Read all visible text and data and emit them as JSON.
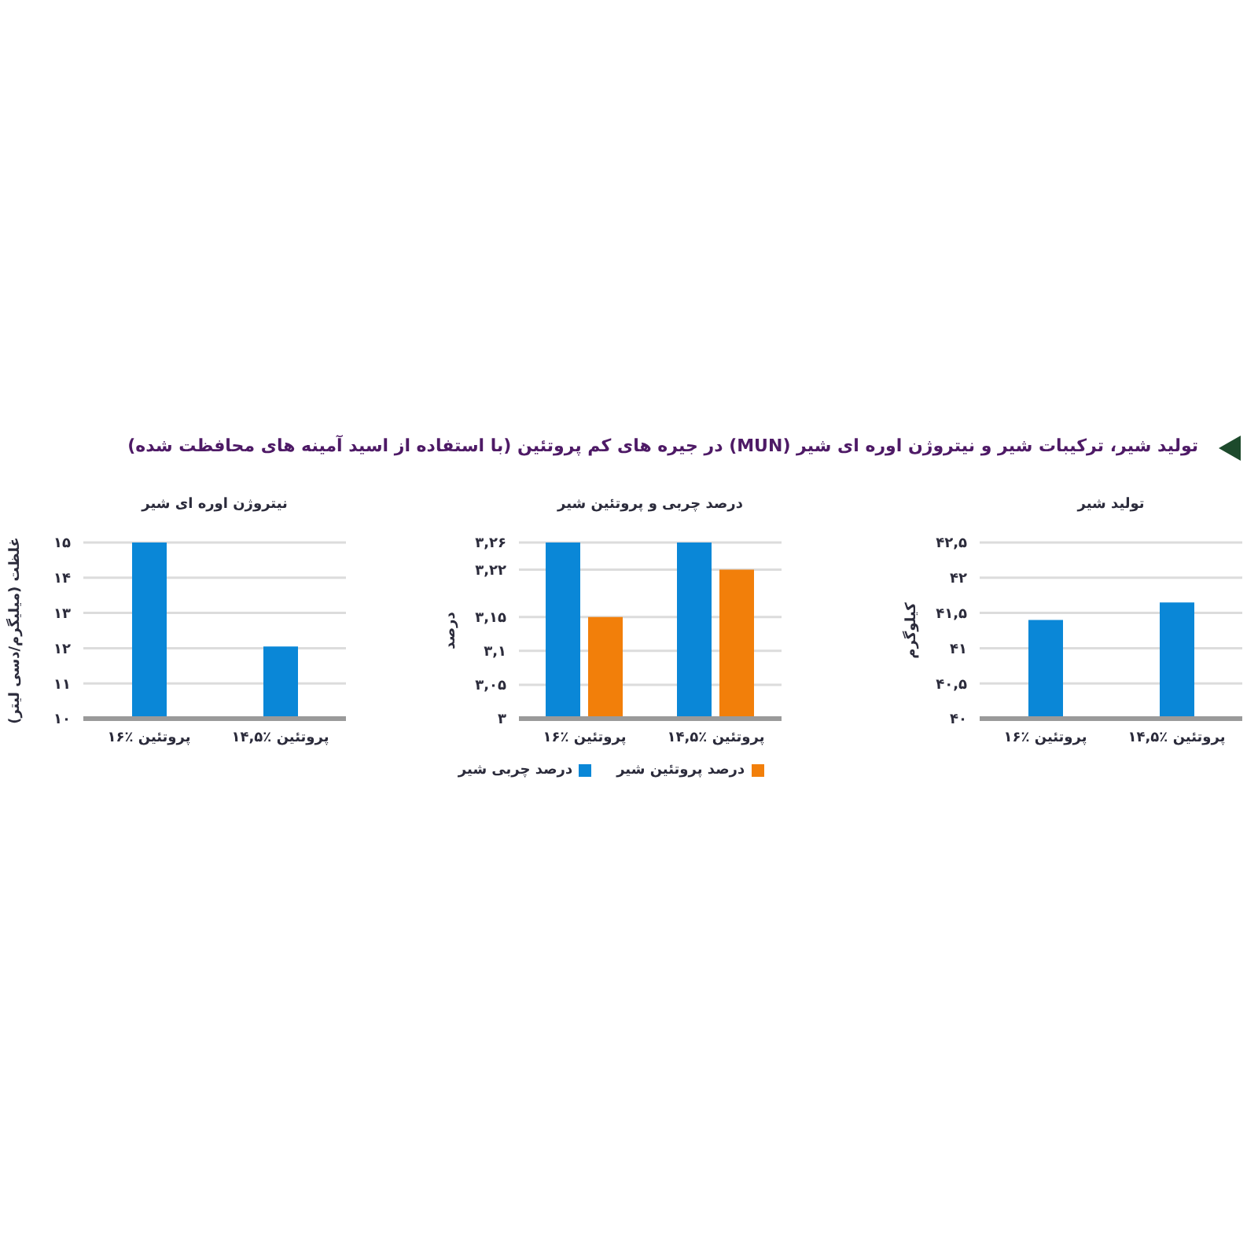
{
  "chart_data": [
    {
      "type": "bar",
      "title": "تولید شیر",
      "ylabel": "کیلوگرم",
      "annotations": [
        "تولید شیر، ترکیبات شیر و نیتروژن اوره ای شیر (MUN) در جیره های کم پروتئین (با استفاده از اسید آمینه های محافظت شده)"
      ],
      "categories": [
        "۱۶٪ پروتئین",
        "۱۴,۵٪ پروتئین"
      ],
      "values": [
        41.4,
        41.65
      ],
      "color": "#0a87d7",
      "ylim": [
        40,
        42.5
      ],
      "yticks": [
        {
          "value": 40,
          "label": "۴۰"
        },
        {
          "value": 40.5,
          "label": "۴۰,۵"
        },
        {
          "value": 41,
          "label": "۴۱"
        },
        {
          "value": 41.5,
          "label": "۴۱,۵"
        },
        {
          "value": 42,
          "label": "۴۲"
        },
        {
          "value": 42.5,
          "label": "۴۲,۵"
        }
      ],
      "grid": "y"
    },
    {
      "type": "bar",
      "title": "درصد چربی و پروتئین شیر",
      "ylabel": "درصد",
      "categories": [
        "۱۶٪ پروتئین",
        "۱۴,۵٪ پروتئین"
      ],
      "series": [
        {
          "name": "درصد چربی شیر",
          "color": "#0a87d7",
          "values": [
            3.26,
            3.26
          ]
        },
        {
          "name": "درصد پروتئین شیر",
          "color": "#f27f0a",
          "values": [
            3.15,
            3.22
          ]
        }
      ],
      "ylim": [
        3,
        3.26
      ],
      "yticks": [
        {
          "value": 3,
          "label": "۳"
        },
        {
          "value": 3.05,
          "label": "۳,۰۵"
        },
        {
          "value": 3.1,
          "label": "۳,۱"
        },
        {
          "value": 3.15,
          "label": "۳,۱۵"
        },
        {
          "value": 3.22,
          "label": "۳,۲۲"
        },
        {
          "value": 3.26,
          "label": "۳,۲۶"
        }
      ],
      "grid": "y",
      "legend": "bottom"
    },
    {
      "type": "bar",
      "title": "نیتروژن اوره ای شیر",
      "ylabel": "غلظت (میلیگرم/دسی لیتر)",
      "categories": [
        "۱۶٪ پروتئین",
        "۱۴,۵٪ پروتئین"
      ],
      "values": [
        15,
        12.05
      ],
      "color": "#0a87d7",
      "ylim": [
        10,
        15
      ],
      "yticks": [
        {
          "value": 10,
          "label": "۱۰"
        },
        {
          "value": 11,
          "label": "۱۱"
        },
        {
          "value": 12,
          "label": "۱۲"
        },
        {
          "value": 13,
          "label": "۱۳"
        },
        {
          "value": 14,
          "label": "۱۴"
        },
        {
          "value": 15,
          "label": "۱۵"
        }
      ],
      "grid": "y"
    }
  ]
}
